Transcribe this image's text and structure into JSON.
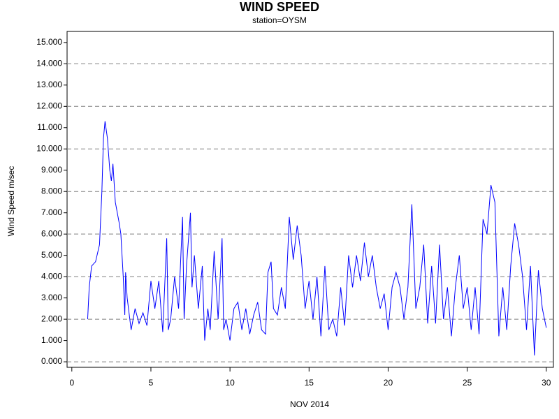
{
  "chart_data": {
    "type": "line",
    "title": "WIND SPEED",
    "subtitle": "station=OYSM",
    "x_label": "NOV 2014",
    "y_label": "Wind Speed m/sec",
    "xlim": [
      -0.3,
      30.45
    ],
    "ylim": [
      -0.26,
      15.52
    ],
    "xticks": [
      0,
      5,
      10,
      15,
      20,
      25,
      30
    ],
    "yticks": [
      {
        "value": 0,
        "label": "0.000"
      },
      {
        "value": 1,
        "label": "1.000"
      },
      {
        "value": 2,
        "label": "2.000"
      },
      {
        "value": 3,
        "label": "3.000"
      },
      {
        "value": 4,
        "label": "4.000"
      },
      {
        "value": 5,
        "label": "5.000"
      },
      {
        "value": 6,
        "label": "6.000"
      },
      {
        "value": 7,
        "label": "7.000"
      },
      {
        "value": 8,
        "label": "8.000"
      },
      {
        "value": 9,
        "label": "9.000"
      },
      {
        "value": 10,
        "label": "10.000"
      },
      {
        "value": 11,
        "label": "11.000"
      },
      {
        "value": 12,
        "label": "12.000"
      },
      {
        "value": 13,
        "label": "13.000"
      },
      {
        "value": 14,
        "label": "14.000"
      },
      {
        "value": 15,
        "label": "15.000"
      }
    ],
    "grid_values": [
      0,
      2,
      4,
      6,
      8,
      10,
      12,
      14
    ],
    "series": [
      {
        "name": "Wind Speed",
        "color": "#0000ff",
        "x": [
          1.0,
          1.1,
          1.25,
          1.5,
          1.75,
          1.9,
          2.0,
          2.1,
          2.25,
          2.4,
          2.5,
          2.6,
          2.75,
          3.0,
          3.1,
          3.25,
          3.35,
          3.4,
          3.5,
          3.75,
          4.0,
          4.25,
          4.5,
          4.75,
          5.0,
          5.25,
          5.5,
          5.75,
          6.0,
          6.1,
          6.25,
          6.5,
          6.75,
          7.0,
          7.1,
          7.25,
          7.5,
          7.6,
          7.75,
          8.0,
          8.25,
          8.4,
          8.6,
          8.75,
          9.0,
          9.25,
          9.5,
          9.6,
          9.75,
          10.0,
          10.25,
          10.5,
          10.75,
          11.0,
          11.25,
          11.5,
          11.75,
          12.0,
          12.25,
          12.4,
          12.6,
          12.75,
          13.0,
          13.25,
          13.5,
          13.75,
          14.0,
          14.25,
          14.5,
          14.75,
          15.0,
          15.25,
          15.5,
          15.75,
          16.0,
          16.25,
          16.5,
          16.75,
          17.0,
          17.25,
          17.5,
          17.75,
          18.0,
          18.25,
          18.5,
          18.75,
          19.0,
          19.25,
          19.5,
          19.75,
          20.0,
          20.25,
          20.5,
          20.75,
          21.0,
          21.25,
          21.5,
          21.75,
          22.0,
          22.25,
          22.5,
          22.75,
          23.0,
          23.25,
          23.5,
          23.75,
          24.0,
          24.25,
          24.5,
          24.75,
          25.0,
          25.25,
          25.5,
          25.75,
          26.0,
          26.25,
          26.5,
          26.75,
          27.0,
          27.25,
          27.5,
          27.75,
          28.0,
          28.25,
          28.5,
          28.75,
          29.0,
          29.25,
          29.5,
          29.75,
          30.0
        ],
        "values": [
          2.0,
          3.5,
          4.5,
          4.7,
          5.5,
          8,
          10.5,
          11.3,
          10.5,
          9,
          8.5,
          9.3,
          7.5,
          6.5,
          6,
          4,
          2.2,
          4.2,
          3,
          1.5,
          2.5,
          1.8,
          2.3,
          1.7,
          3.8,
          2.5,
          3.8,
          1.4,
          5.8,
          1.5,
          2.0,
          4,
          2.5,
          6.8,
          2.0,
          4.5,
          7.0,
          3.5,
          5,
          2.5,
          4.5,
          1.0,
          2.5,
          1.5,
          5.2,
          2,
          5.8,
          1.5,
          2,
          1.0,
          2.5,
          2.8,
          1.5,
          2.5,
          1.3,
          2.2,
          2.8,
          1.5,
          1.3,
          4.2,
          4.7,
          2.5,
          2.2,
          3.5,
          2.5,
          6.8,
          4.8,
          6.4,
          5,
          2.5,
          3.8,
          2,
          4,
          1.2,
          4.5,
          1.5,
          2.0,
          1.2,
          3.5,
          1.7,
          5.0,
          3.5,
          5.0,
          3.8,
          5.6,
          4,
          5,
          3.5,
          2.5,
          3.2,
          1.5,
          3.5,
          4.2,
          3.5,
          2,
          3.5,
          7.4,
          2.5,
          3.5,
          5.5,
          1.8,
          4.5,
          1.8,
          5.5,
          2.0,
          3.5,
          1.2,
          3.5,
          5.0,
          2.5,
          3.5,
          1.5,
          3.5,
          1.3,
          6.7,
          6.0,
          8.3,
          7.5,
          1.2,
          3.5,
          1.5,
          4.5,
          6.5,
          5.5,
          4.0,
          1.5,
          4.5,
          0.3,
          4.3,
          2.5,
          1.6
        ]
      }
    ]
  }
}
